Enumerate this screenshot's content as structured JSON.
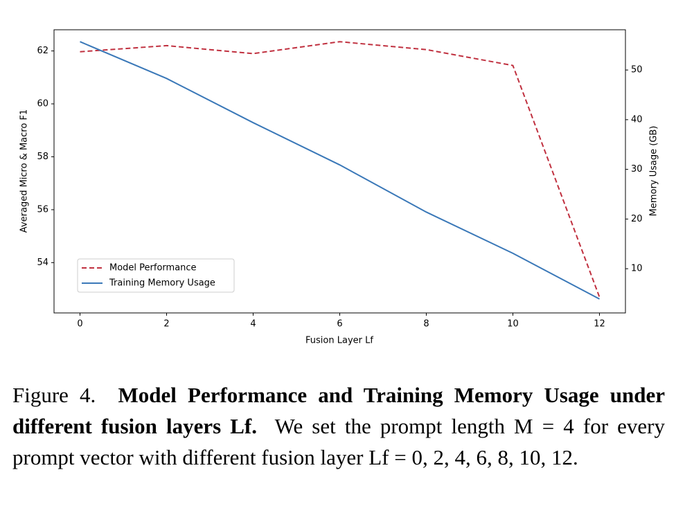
{
  "chart_data": {
    "type": "line",
    "x": [
      0,
      2,
      4,
      6,
      8,
      10,
      12
    ],
    "xlim": [
      -0.6,
      12.6
    ],
    "xticks": [
      0,
      2,
      4,
      6,
      8,
      10,
      12
    ],
    "ylim": [
      52.1,
      62.8
    ],
    "yticks": [
      54,
      56,
      58,
      60,
      62
    ],
    "y2lim": [
      1.1,
      58.1
    ],
    "y2ticks": [
      10,
      20,
      30,
      40,
      50
    ],
    "xlabel": "Fusion Layer Lf",
    "ylabel": "Averaged Micro & Macro F1",
    "y2label": "Memory Usage (GB)",
    "legend": "lower left",
    "series": [
      {
        "name": "Model Performance",
        "color": "#c0303f",
        "dashed": true,
        "values": [
          61.97,
          62.2,
          61.9,
          62.35,
          62.05,
          61.45,
          52.7
        ]
      },
      {
        "name": "Training Memory Usage",
        "color": "#3a78b8",
        "dashed": false,
        "axis": "y2",
        "values": [
          55.7,
          48.3,
          39.4,
          30.9,
          21.4,
          13.1,
          3.9
        ]
      }
    ]
  },
  "caption": {
    "label": "Figure 4.",
    "bold": "Model Performance and Training Memory Usage under different fusion layers Lf.",
    "text": "We set the prompt length M = 4 for every prompt vector with different fusion layer Lf = 0, 2, 4, 6, 8, 10, 12."
  }
}
